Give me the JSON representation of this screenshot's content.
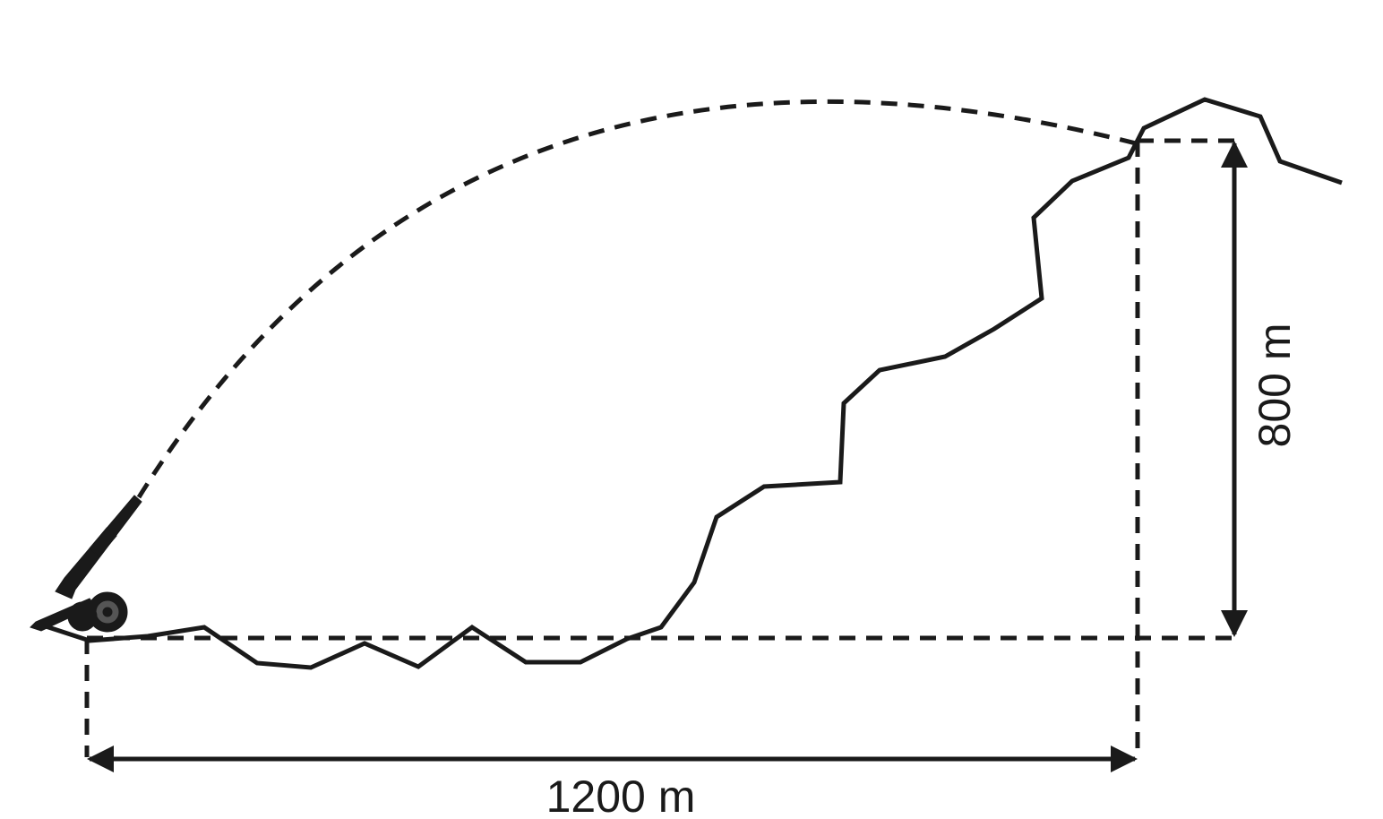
{
  "labels": {
    "horizontal_distance": "1200 m",
    "vertical_height": "800 m"
  },
  "colors": {
    "stroke": "#1a1a1a",
    "background": "#ffffff"
  },
  "icons": [
    "cannon-icon"
  ]
}
